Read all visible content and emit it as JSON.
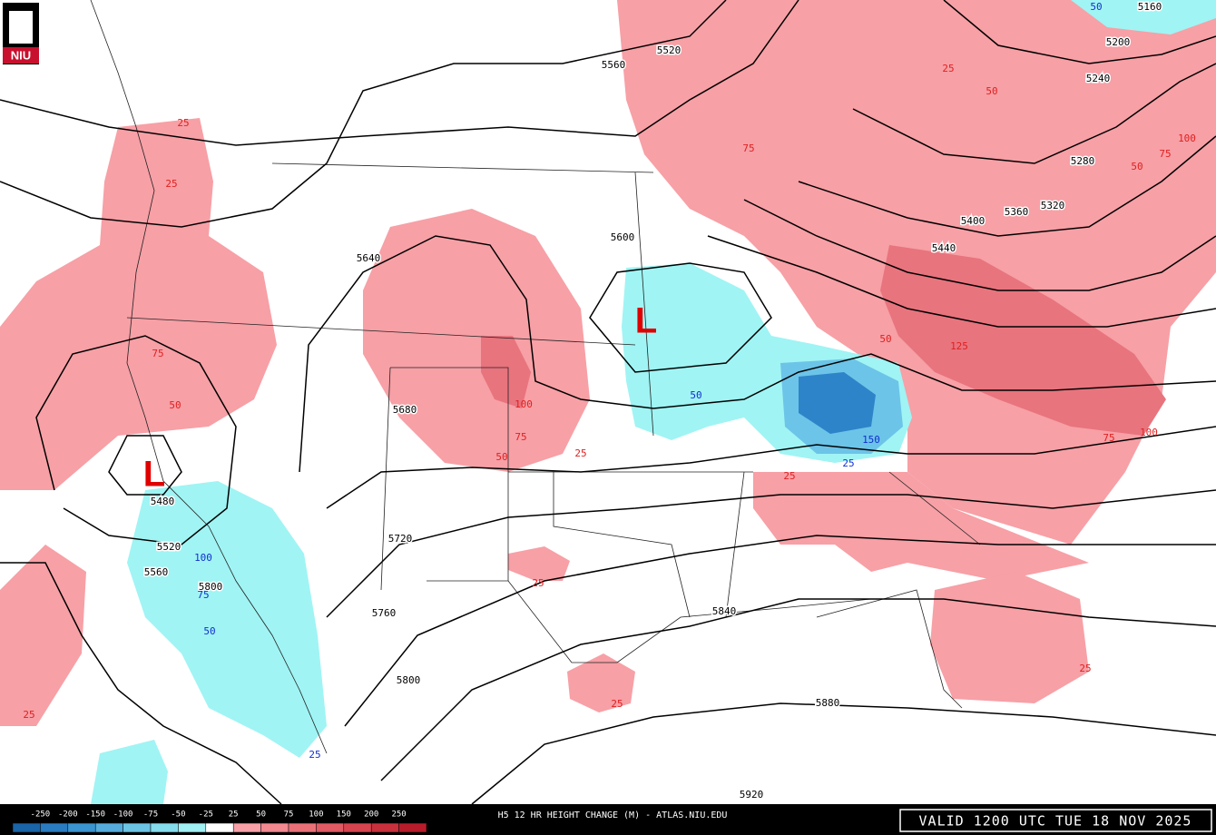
{
  "logo": "NIU",
  "lows": [
    "L",
    "L"
  ],
  "height_contour_labels": [
    "5160",
    "5200",
    "5240",
    "5280",
    "5320",
    "5360",
    "5400",
    "5440",
    "5480",
    "5520",
    "5520",
    "5560",
    "5560",
    "5600",
    "5640",
    "5680",
    "5720",
    "5760",
    "5800",
    "5800",
    "5840",
    "5880",
    "5920"
  ],
  "rise_labels": [
    "25",
    "25",
    "75",
    "50",
    "100",
    "75",
    "50",
    "25",
    "75",
    "50",
    "25",
    "100",
    "50",
    "75",
    "125",
    "100",
    "75",
    "25",
    "25",
    "25",
    "25",
    "25",
    "50"
  ],
  "fall_labels": [
    "50",
    "25",
    "100",
    "75",
    "50",
    "25",
    "50",
    "150"
  ],
  "legend": {
    "labels": [
      "-250",
      "-200",
      "-150",
      "-100",
      "-75",
      "-50",
      "-25",
      "25",
      "50",
      "75",
      "100",
      "150",
      "200",
      "250"
    ],
    "colors": [
      "#1a64a8",
      "#2a7cc0",
      "#3a94d0",
      "#55acdc",
      "#6cc4e4",
      "#84dcec",
      "#a0f0f4",
      "#ffffff",
      "#f8a0a8",
      "#f28890",
      "#ea7078",
      "#e05a64",
      "#d6444f",
      "#c8303c",
      "#b81c2a"
    ]
  },
  "title": "H5 12 HR HEIGHT CHANGE (M) - ATLAS.NIU.EDU",
  "valid": "VALID 1200 UTC TUE 18 NOV 2025"
}
